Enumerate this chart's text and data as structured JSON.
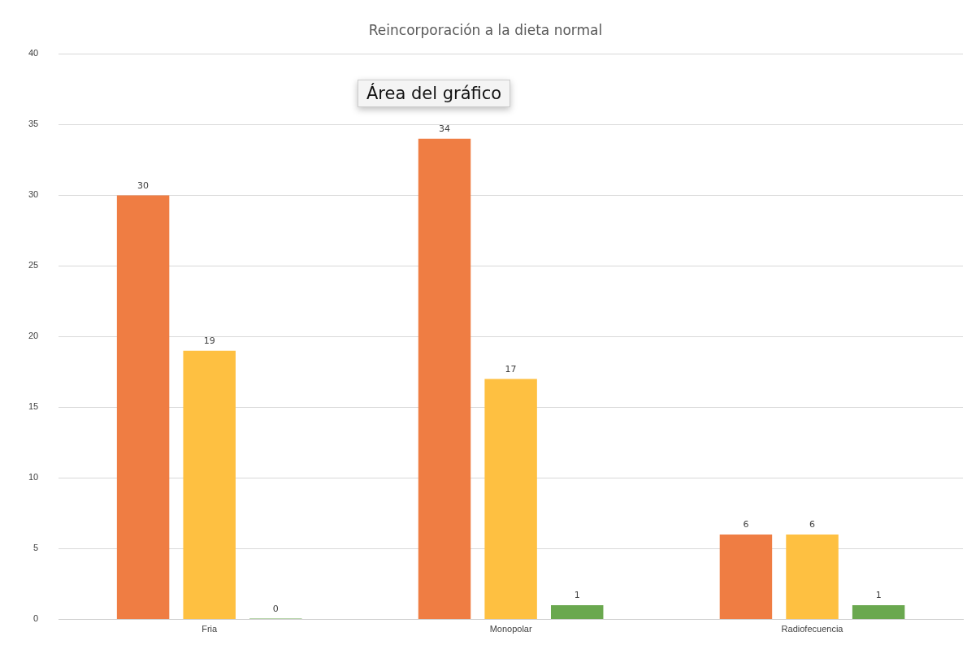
{
  "chart_data": {
    "type": "bar",
    "title": "Reincorporación a la dieta normal",
    "categories": [
      "Fria",
      "Monopolar",
      "Radiofecuencia"
    ],
    "series": [
      {
        "color": "#ef7d43",
        "values": [
          30,
          34,
          6
        ]
      },
      {
        "color": "#fec041",
        "values": [
          19,
          17,
          6
        ]
      },
      {
        "color": "#6aa84f",
        "values": [
          0,
          1,
          1
        ]
      }
    ],
    "ylim": [
      0,
      40
    ],
    "yticks": [
      0,
      5,
      10,
      15,
      20,
      25,
      30,
      35,
      40
    ],
    "grid": "y",
    "legend": false,
    "data_labels": true,
    "annotations": [
      "Área del gráfico"
    ]
  }
}
